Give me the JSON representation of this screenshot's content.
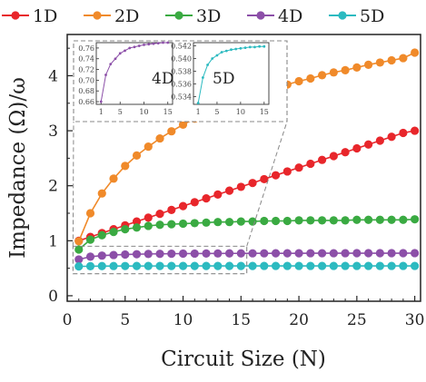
{
  "chart_data": {
    "type": "line",
    "xlabel": "Circuit Size (N)",
    "ylabel": "Impedance (Ω)/ω",
    "xlim": [
      0,
      30.5
    ],
    "ylim": [
      -0.1,
      4.75
    ],
    "x_ticks": [
      0,
      5,
      10,
      15,
      20,
      25,
      30
    ],
    "y_ticks": [
      0,
      1,
      2,
      3,
      4
    ],
    "grid": false,
    "legend_placement": "top, outside plot, single row",
    "x": [
      1,
      2,
      3,
      4,
      5,
      6,
      7,
      8,
      9,
      10,
      11,
      12,
      13,
      14,
      15,
      16,
      17,
      18,
      19,
      20,
      21,
      22,
      23,
      24,
      25,
      26,
      27,
      28,
      29,
      30
    ],
    "series": [
      {
        "name": "1D",
        "color": "#e8262b",
        "values": [
          1.0,
          1.07,
          1.14,
          1.21,
          1.28,
          1.35,
          1.42,
          1.49,
          1.56,
          1.63,
          1.7,
          1.77,
          1.84,
          1.91,
          1.98,
          2.05,
          2.12,
          2.19,
          2.26,
          2.33,
          2.4,
          2.47,
          2.54,
          2.61,
          2.68,
          2.75,
          2.82,
          2.89,
          2.96,
          3.0
        ]
      },
      {
        "name": "2D",
        "color": "#f08a2a",
        "values": [
          0.99,
          1.5,
          1.86,
          2.13,
          2.36,
          2.55,
          2.71,
          2.86,
          2.99,
          3.11,
          3.22,
          3.32,
          3.41,
          3.49,
          3.57,
          3.64,
          3.71,
          3.78,
          3.84,
          3.9,
          3.95,
          4.01,
          4.06,
          4.1,
          4.15,
          4.2,
          4.24,
          4.28,
          4.32,
          4.42
        ]
      },
      {
        "name": "3D",
        "color": "#3aaa42",
        "values": [
          0.84,
          1.02,
          1.1,
          1.16,
          1.21,
          1.24,
          1.27,
          1.29,
          1.3,
          1.31,
          1.32,
          1.33,
          1.34,
          1.34,
          1.35,
          1.35,
          1.36,
          1.36,
          1.36,
          1.37,
          1.37,
          1.37,
          1.37,
          1.37,
          1.38,
          1.38,
          1.38,
          1.38,
          1.38,
          1.39
        ]
      },
      {
        "name": "4D",
        "color": "#8c4fa8",
        "values": [
          0.66,
          0.71,
          0.73,
          0.74,
          0.75,
          0.755,
          0.76,
          0.762,
          0.764,
          0.766,
          0.767,
          0.768,
          0.769,
          0.77,
          0.77,
          0.771,
          0.771,
          0.772,
          0.772,
          0.772,
          0.773,
          0.773,
          0.773,
          0.773,
          0.774,
          0.774,
          0.774,
          0.774,
          0.774,
          0.775
        ]
      },
      {
        "name": "5D",
        "color": "#2cbac0",
        "values": [
          0.533,
          0.537,
          0.539,
          0.54,
          0.5405,
          0.541,
          0.5412,
          0.5414,
          0.5415,
          0.5416,
          0.5417,
          0.5418,
          0.5418,
          0.5419,
          0.5419,
          0.5419,
          0.542,
          0.542,
          0.542,
          0.542,
          0.542,
          0.542,
          0.542,
          0.542,
          0.542,
          0.542,
          0.542,
          0.542,
          0.542,
          0.542
        ]
      }
    ],
    "zoom_box": {
      "xlim": [
        0.5,
        15.5
      ],
      "ylim": [
        0.4,
        0.9
      ]
    },
    "insets": [
      {
        "label": "4D",
        "series": "4D",
        "xlim": [
          0,
          16
        ],
        "ylim": [
          0.655,
          0.77
        ],
        "x_ticks": [
          1,
          5,
          10,
          15
        ],
        "y_ticks": [
          0.66,
          0.68,
          0.7,
          0.72,
          0.74,
          0.76
        ],
        "x_tick_labels": [
          "1",
          "5",
          "10",
          "15"
        ],
        "y_tick_labels": [
          "0.66",
          "0.68",
          "0.70",
          "0.72",
          "0.74",
          "0.76"
        ]
      },
      {
        "label": "5D",
        "series": "5D",
        "xlim": [
          0,
          16
        ],
        "ylim": [
          0.5328,
          0.5425
        ],
        "x_ticks": [
          1,
          5,
          10,
          15
        ],
        "y_ticks": [
          0.534,
          0.536,
          0.538,
          0.54,
          0.542
        ],
        "x_tick_labels": [
          "1",
          "5",
          "10",
          "15"
        ],
        "y_tick_labels": [
          "0.534",
          "0.536",
          "0.538",
          "0.540",
          "0.542"
        ]
      }
    ]
  }
}
